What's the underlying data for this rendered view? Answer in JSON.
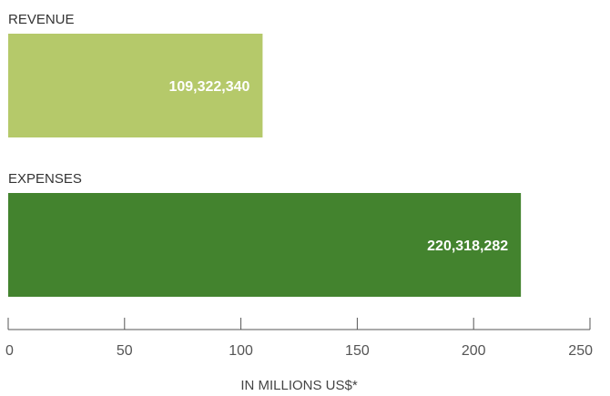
{
  "chart_data": {
    "type": "bar",
    "orientation": "horizontal",
    "categories": [
      "REVENUE",
      "EXPENSES"
    ],
    "values": [
      109.32234,
      220.318282
    ],
    "value_labels": [
      "109,322,340",
      "220,318,282"
    ],
    "xlabel": "IN MILLIONS US$*",
    "xlim": [
      0,
      250
    ],
    "ticks": [
      0,
      50,
      100,
      150,
      200,
      250
    ],
    "tick_labels": [
      "0",
      "50",
      "100",
      "150",
      "200",
      "250"
    ],
    "grid": false,
    "colors": [
      "#b5c96a",
      "#43832e"
    ]
  }
}
